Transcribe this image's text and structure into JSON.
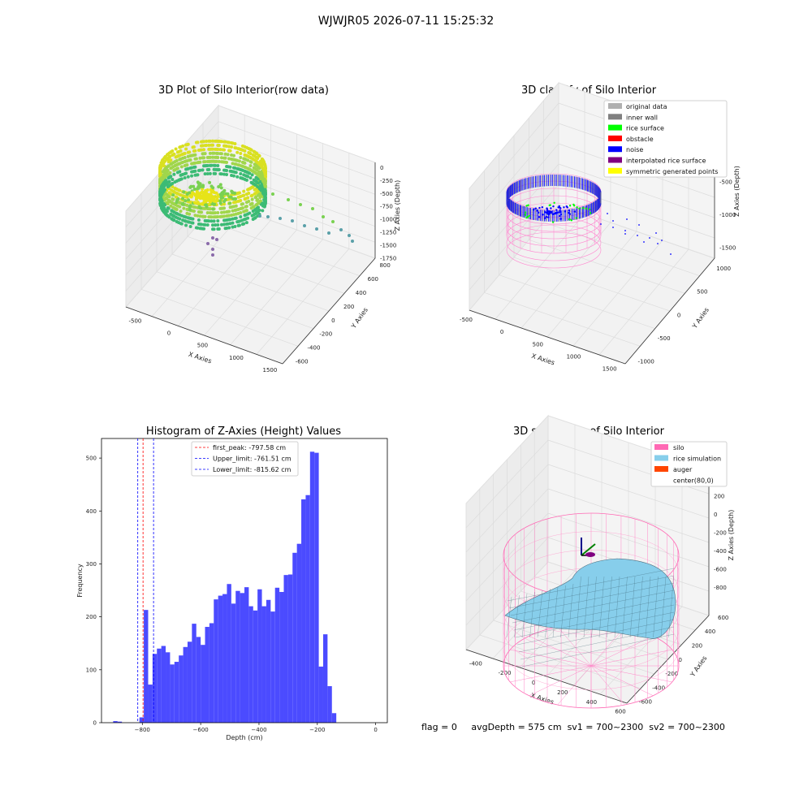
{
  "suptitle": "WJWJR05 2026-07-11 15:25:32",
  "chart_data": [
    {
      "type": "scatter",
      "title": "3D Plot of Silo Interior(row data)",
      "xlabel": "X Axies",
      "ylabel": "Y Axies",
      "zlabel": "Z Axies (Depth)",
      "x_ticks": [
        "-500",
        "0",
        "500",
        "1000",
        "1500"
      ],
      "y_ticks": [
        "-600",
        "-400",
        "-200",
        "0",
        "200",
        "400",
        "600",
        "800"
      ],
      "z_ticks": [
        "0",
        "-250",
        "-500",
        "-750",
        "-1000",
        "-1250",
        "-1500",
        "-1750"
      ]
    },
    {
      "type": "scatter",
      "title": "3D classify of Silo Interior",
      "xlabel": "X Axies",
      "ylabel": "Y Axies",
      "zlabel": "Z Axies (Depth)",
      "x_ticks": [
        "-500",
        "0",
        "500",
        "1000",
        "1500"
      ],
      "y_ticks": [
        "-1000",
        "-500",
        "0",
        "500",
        "1000"
      ],
      "z_ticks": [
        "0",
        "-500",
        "-1000",
        "-1500"
      ],
      "legend": [
        {
          "label": "original data",
          "color": "#b0b0b0"
        },
        {
          "label": "inner wall",
          "color": "#808080"
        },
        {
          "label": "rice surface",
          "color": "#00ff00"
        },
        {
          "label": "obstacle",
          "color": "#ff0000"
        },
        {
          "label": "noise",
          "color": "#0000ff"
        },
        {
          "label": "interpolated rice surface",
          "color": "#800080"
        },
        {
          "label": "symmetric generated points",
          "color": "#ffff00"
        }
      ]
    },
    {
      "type": "bar",
      "title": "Histogram of Z-Axies (Height) Values",
      "xlabel": "Depth (cm)",
      "ylabel": "Frequency",
      "xlim": [
        -940,
        40
      ],
      "ylim": [
        0,
        537
      ],
      "x_ticks": [
        -800,
        -600,
        -400,
        -200,
        0
      ],
      "y_ticks": [
        0,
        100,
        200,
        300,
        400,
        500
      ],
      "bin_width": 15,
      "bin_start": [
        -900,
        -885,
        -870,
        -855,
        -840,
        -825,
        -810,
        -795,
        -780,
        -765,
        -750,
        -735,
        -720,
        -705,
        -690,
        -675,
        -660,
        -645,
        -630,
        -615,
        -600,
        -585,
        -570,
        -555,
        -540,
        -525,
        -510,
        -495,
        -480,
        -465,
        -450,
        -435,
        -420,
        -405,
        -390,
        -375,
        -360,
        -345,
        -330,
        -315,
        -300,
        -285,
        -270,
        -255,
        -240,
        -225,
        -210,
        -195,
        -180,
        -165,
        -150,
        -135,
        -120,
        -105,
        -90,
        -75,
        -60,
        -45,
        -30,
        -15
      ],
      "values": [
        3,
        2,
        0,
        0,
        0,
        0,
        10,
        213,
        72,
        130,
        140,
        145,
        133,
        110,
        115,
        127,
        143,
        153,
        187,
        162,
        147,
        181,
        188,
        233,
        240,
        243,
        262,
        225,
        249,
        245,
        256,
        220,
        212,
        252,
        220,
        232,
        210,
        255,
        247,
        279,
        280,
        321,
        338,
        422,
        430,
        512,
        510,
        106,
        167,
        69,
        18,
        0,
        0,
        0,
        0,
        0,
        0,
        0,
        0,
        0
      ],
      "color": "#4b4bff",
      "lines": [
        {
          "label": "first_peak: -797.58 cm",
          "x": -797.58,
          "color": "#ff0000"
        },
        {
          "label": "Upper_limit: -761.51 cm",
          "x": -761.51,
          "color": "#0000ff"
        },
        {
          "label": "Lower_limit: -815.62 cm",
          "x": -815.62,
          "color": "#0000ff"
        }
      ]
    },
    {
      "type": "scatter",
      "title": "3D simulation of Silo Interior",
      "xlabel": "X Axies",
      "ylabel": "Y Axies",
      "zlabel": "Z Axies (Depth)",
      "x_ticks": [
        "-400",
        "-200",
        "0",
        "200",
        "400",
        "600"
      ],
      "y_ticks": [
        "-600",
        "-400",
        "-200",
        "0",
        "200",
        "400",
        "600"
      ],
      "z_ticks": [
        "200",
        "0",
        "-200",
        "-400",
        "-600",
        "-800"
      ],
      "legend": [
        {
          "label": "silo",
          "color": "#ff69b4"
        },
        {
          "label": "rice simulation",
          "color": "#87ceeb"
        },
        {
          "label": "auger",
          "color": "#ff4500"
        },
        {
          "label": "center(80,0)",
          "color": ""
        }
      ]
    }
  ],
  "footer": {
    "flag": "flag = 0",
    "avg": "avgDepth = 575 cm",
    "sv1": "sv1 = 700~2300",
    "sv2": "sv2 = 700~2300"
  }
}
